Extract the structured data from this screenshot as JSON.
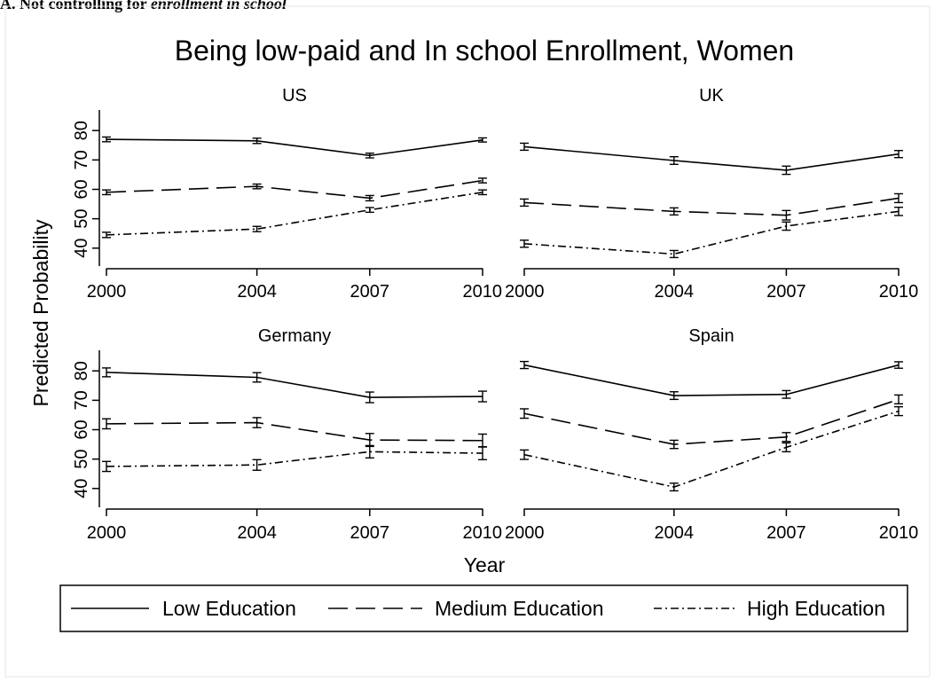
{
  "caption": {
    "prefix": "A. Not controlling for ",
    "emphasis": "enrollment in school"
  },
  "chart_data": {
    "type": "line",
    "title": "Being low-paid and In school Enrollment, Women",
    "xlabel": "Year",
    "ylabel": "Predicted Probability",
    "x": [
      2000,
      2004,
      2007,
      2010
    ],
    "x_tick_labels": [
      "2000",
      "2004",
      "2007",
      "2010"
    ],
    "y_ticks": [
      40,
      50,
      60,
      70,
      80
    ],
    "y_tick_labels": [
      "40",
      "50",
      "60",
      "70",
      "80"
    ],
    "ylim": [
      33,
      87
    ],
    "grid": false,
    "legend_position": "bottom",
    "series_styles": [
      {
        "name": "Low Education",
        "dash": "solid"
      },
      {
        "name": "Medium Education",
        "dash": "dash"
      },
      {
        "name": "High Education",
        "dash": "dashdot"
      }
    ],
    "panels": [
      {
        "title": "US",
        "series": [
          {
            "name": "Low Education",
            "values": [
              77,
              76.5,
              71.5,
              76.8
            ],
            "err": [
              0.8,
              0.9,
              0.8,
              0.7
            ]
          },
          {
            "name": "Medium Education",
            "values": [
              59,
              61,
              57,
              63
            ],
            "err": [
              0.8,
              0.8,
              0.9,
              0.8
            ]
          },
          {
            "name": "High Education",
            "values": [
              44.5,
              46.5,
              53,
              59
            ],
            "err": [
              0.9,
              0.9,
              0.8,
              0.8
            ]
          }
        ]
      },
      {
        "title": "UK",
        "series": [
          {
            "name": "Low Education",
            "values": [
              74.5,
              69.8,
              66.5,
              72
            ],
            "err": [
              1.2,
              1.3,
              1.4,
              1.2
            ]
          },
          {
            "name": "Medium Education",
            "values": [
              55.5,
              52.5,
              51.2,
              57
            ],
            "err": [
              1.2,
              1.2,
              1.6,
              1.5
            ]
          },
          {
            "name": "High Education",
            "values": [
              41.5,
              38,
              47.5,
              52.5
            ],
            "err": [
              1.2,
              1.2,
              1.4,
              1.4
            ]
          }
        ]
      },
      {
        "title": "Germany",
        "series": [
          {
            "name": "Low Education",
            "values": [
              79.5,
              77.8,
              71,
              71.3
            ],
            "err": [
              1.5,
              1.6,
              1.8,
              1.8
            ]
          },
          {
            "name": "Medium Education",
            "values": [
              62,
              62.4,
              56.5,
              56.3
            ],
            "err": [
              1.7,
              1.7,
              2.2,
              2.2
            ]
          },
          {
            "name": "High Education",
            "values": [
              47.5,
              48,
              52.5,
              52
            ],
            "err": [
              1.7,
              1.8,
              2.1,
              2.2
            ]
          }
        ]
      },
      {
        "title": "Spain",
        "series": [
          {
            "name": "Low Education",
            "values": [
              82,
              71.6,
              72,
              82
            ],
            "err": [
              1.2,
              1.3,
              1.3,
              1.1
            ]
          },
          {
            "name": "Medium Education",
            "values": [
              65.5,
              55,
              57.5,
              70.3
            ],
            "err": [
              1.6,
              1.4,
              1.5,
              1.5
            ]
          },
          {
            "name": "High Education",
            "values": [
              51.5,
              40.5,
              54,
              66.3
            ],
            "err": [
              1.6,
              1.3,
              1.5,
              1.5
            ]
          }
        ]
      }
    ]
  }
}
